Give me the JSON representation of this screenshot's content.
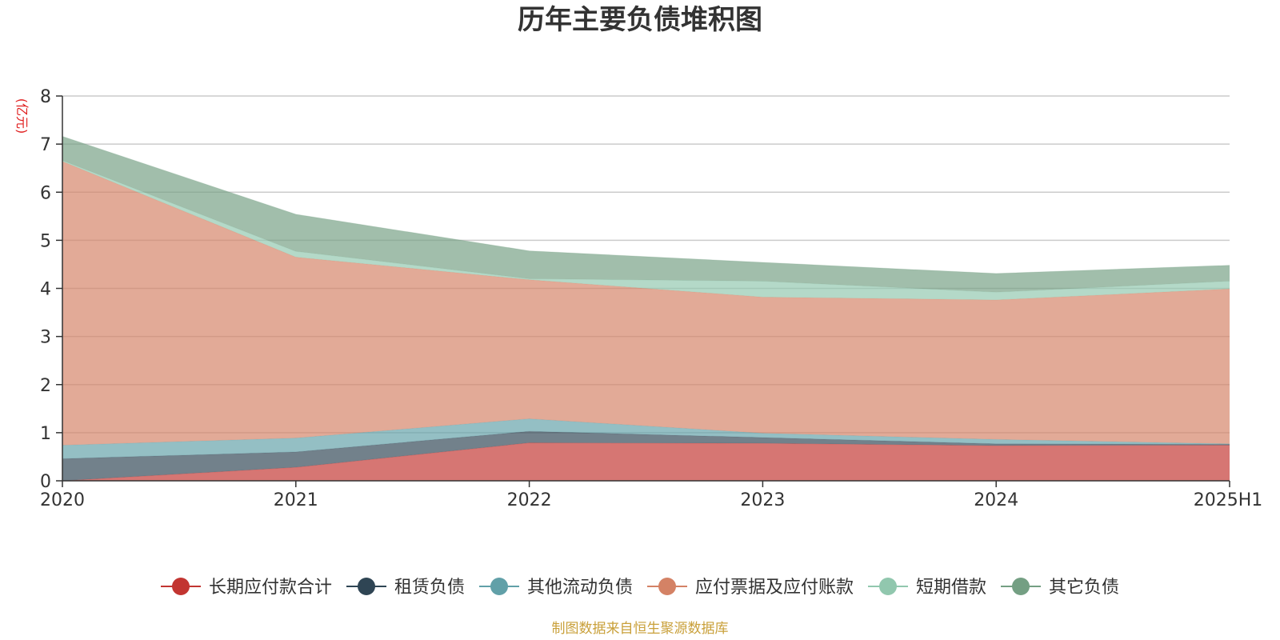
{
  "chart_data": {
    "type": "area",
    "stacked": true,
    "title": "历年主要负债堆积图",
    "ylabel": "(亿元)",
    "ylim": [
      0,
      8
    ],
    "yticks": [
      "0",
      "1",
      "2",
      "3",
      "4",
      "5",
      "6",
      "7",
      "8"
    ],
    "categories": [
      "2020",
      "2021",
      "2022",
      "2023",
      "2024",
      "2025H1"
    ],
    "grid": true,
    "legend_position": "bottom",
    "series": [
      {
        "name": "长期应付款合计",
        "color": "#c23531",
        "values": [
          0.0,
          0.28,
          0.79,
          0.78,
          0.73,
          0.74
        ]
      },
      {
        "name": "租赁负债",
        "color": "#2f4554",
        "values": [
          0.46,
          0.32,
          0.24,
          0.12,
          0.04,
          0.02
        ]
      },
      {
        "name": "其他流动负债",
        "color": "#61a0a8",
        "values": [
          0.28,
          0.29,
          0.26,
          0.09,
          0.09,
          0.01
        ]
      },
      {
        "name": "应付票据及应付账款",
        "color": "#d48265",
        "values": [
          5.9,
          3.76,
          2.89,
          2.83,
          2.9,
          3.22
        ]
      },
      {
        "name": "短期借款",
        "color": "#91c7ae",
        "values": [
          0.02,
          0.12,
          0.02,
          0.33,
          0.16,
          0.16
        ]
      },
      {
        "name": "其它负债",
        "color": "#749f83",
        "values": [
          0.5,
          0.77,
          0.58,
          0.39,
          0.39,
          0.33
        ]
      }
    ],
    "source": "制图数据来自恒生聚源数据库",
    "source_color": "#c9a03a",
    "unit_color": "#e02020"
  }
}
